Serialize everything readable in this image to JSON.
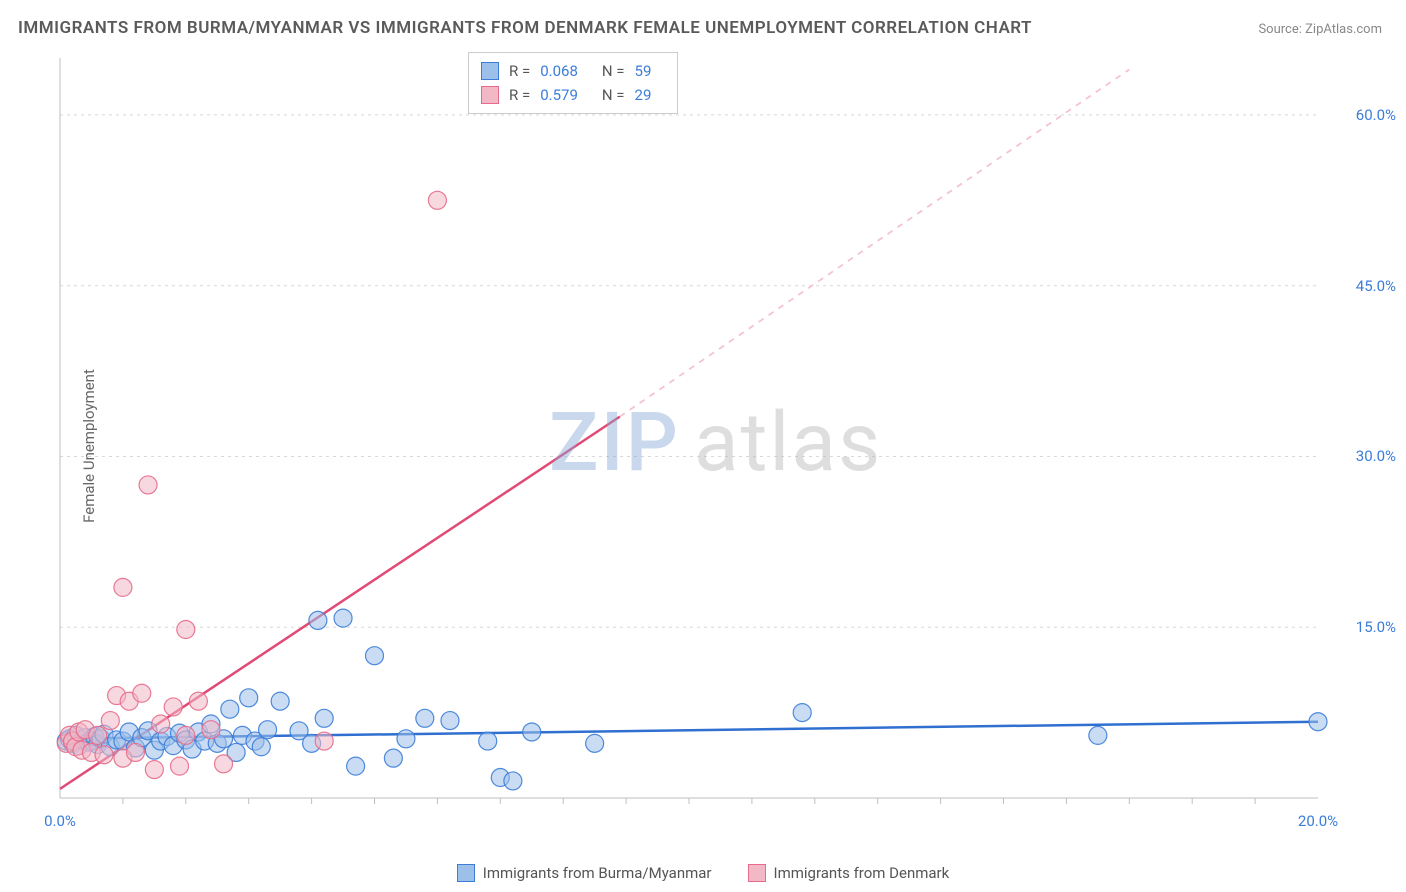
{
  "title": "IMMIGRANTS FROM BURMA/MYANMAR VS IMMIGRANTS FROM DENMARK FEMALE UNEMPLOYMENT CORRELATION CHART",
  "source_label": "Source:",
  "source_value": "ZipAtlas.com",
  "ylabel": "Female Unemployment",
  "watermark_a": "ZIP",
  "watermark_b": "atlas",
  "chart": {
    "type": "scatter",
    "plot_bg": "#ffffff",
    "grid_color": "#d8d8d8",
    "axis_color": "#bfbfbf",
    "tick_label_color": "#3b7dd8",
    "tick_fontsize": 15,
    "xlim": [
      0,
      20
    ],
    "ylim": [
      0,
      65
    ],
    "xticks": [
      0,
      20
    ],
    "xtick_labels": [
      "0.0%",
      "20.0%"
    ],
    "yticks": [
      15,
      30,
      45,
      60
    ],
    "ytick_labels": [
      "15.0%",
      "30.0%",
      "45.0%",
      "60.0%"
    ],
    "marker_radius": 9,
    "marker_opacity": 0.55,
    "marker_stroke_opacity": 0.9,
    "series": [
      {
        "name": "Immigrants from Burma/Myanmar",
        "fill": "#9cc0ea",
        "stroke": "#3b7dd8",
        "r_value": "0.068",
        "n_value": "59",
        "trend": {
          "x1": 0,
          "y1": 5.2,
          "x2": 20,
          "y2": 6.7,
          "color": "#2f6fd0",
          "width": 2.5,
          "dash": ""
        },
        "points": [
          [
            0.1,
            5.0
          ],
          [
            0.15,
            5.2
          ],
          [
            0.2,
            4.8
          ],
          [
            0.25,
            5.5
          ],
          [
            0.3,
            4.6
          ],
          [
            0.35,
            5.1
          ],
          [
            0.4,
            5.3
          ],
          [
            0.45,
            4.9
          ],
          [
            0.5,
            5.0
          ],
          [
            0.55,
            5.4
          ],
          [
            0.6,
            4.7
          ],
          [
            0.65,
            5.2
          ],
          [
            0.7,
            5.6
          ],
          [
            0.8,
            4.5
          ],
          [
            0.9,
            5.1
          ],
          [
            1.0,
            5.0
          ],
          [
            1.1,
            5.8
          ],
          [
            1.2,
            4.4
          ],
          [
            1.3,
            5.3
          ],
          [
            1.4,
            5.9
          ],
          [
            1.5,
            4.2
          ],
          [
            1.6,
            5.0
          ],
          [
            1.7,
            5.4
          ],
          [
            1.8,
            4.6
          ],
          [
            1.9,
            5.7
          ],
          [
            2.0,
            5.1
          ],
          [
            2.1,
            4.3
          ],
          [
            2.2,
            5.8
          ],
          [
            2.3,
            5.0
          ],
          [
            2.4,
            6.5
          ],
          [
            2.5,
            4.8
          ],
          [
            2.6,
            5.2
          ],
          [
            2.7,
            7.8
          ],
          [
            2.8,
            4.0
          ],
          [
            2.9,
            5.5
          ],
          [
            3.0,
            8.8
          ],
          [
            3.1,
            5.0
          ],
          [
            3.2,
            4.5
          ],
          [
            3.3,
            6.0
          ],
          [
            3.5,
            8.5
          ],
          [
            3.8,
            5.9
          ],
          [
            4.0,
            4.8
          ],
          [
            4.1,
            15.6
          ],
          [
            4.2,
            7.0
          ],
          [
            4.5,
            15.8
          ],
          [
            4.7,
            2.8
          ],
          [
            5.0,
            12.5
          ],
          [
            5.3,
            3.5
          ],
          [
            5.5,
            5.2
          ],
          [
            5.8,
            7.0
          ],
          [
            6.2,
            6.8
          ],
          [
            6.8,
            5.0
          ],
          [
            7.0,
            1.8
          ],
          [
            7.5,
            5.8
          ],
          [
            8.5,
            4.8
          ],
          [
            7.2,
            1.5
          ],
          [
            11.8,
            7.5
          ],
          [
            16.5,
            5.5
          ],
          [
            20.0,
            6.7
          ]
        ]
      },
      {
        "name": "Immigrants from Denmark",
        "fill": "#f2b8c6",
        "stroke": "#e76b8a",
        "r_value": "0.579",
        "n_value": "29",
        "trend_solid": {
          "x1": 0,
          "y1": 0.8,
          "x2": 8.9,
          "y2": 33.5,
          "color": "#e14a74",
          "width": 2.5
        },
        "trend_dash": {
          "x1": 8.9,
          "y1": 33.5,
          "x2": 17.0,
          "y2": 64,
          "color": "#f4c3d0",
          "width": 1.8,
          "dash": "6,6"
        },
        "points": [
          [
            0.1,
            4.8
          ],
          [
            0.15,
            5.5
          ],
          [
            0.2,
            5.0
          ],
          [
            0.25,
            4.5
          ],
          [
            0.3,
            5.8
          ],
          [
            0.35,
            4.2
          ],
          [
            0.4,
            6.0
          ],
          [
            0.5,
            4.0
          ],
          [
            0.6,
            5.5
          ],
          [
            0.7,
            3.8
          ],
          [
            0.8,
            6.8
          ],
          [
            0.9,
            9.0
          ],
          [
            1.0,
            3.5
          ],
          [
            1.1,
            8.5
          ],
          [
            1.2,
            4.0
          ],
          [
            1.3,
            9.2
          ],
          [
            1.5,
            2.5
          ],
          [
            1.6,
            6.5
          ],
          [
            1.8,
            8.0
          ],
          [
            1.9,
            2.8
          ],
          [
            2.0,
            5.5
          ],
          [
            2.2,
            8.5
          ],
          [
            2.4,
            6.0
          ],
          [
            2.6,
            3.0
          ],
          [
            1.0,
            18.5
          ],
          [
            1.4,
            27.5
          ],
          [
            2.0,
            14.8
          ],
          [
            4.2,
            5.0
          ],
          [
            6.0,
            52.5
          ]
        ]
      }
    ]
  },
  "bottom_legend": [
    {
      "label": "Immigrants from Burma/Myanmar",
      "fill": "#9cc0ea",
      "stroke": "#3b7dd8"
    },
    {
      "label": "Immigrants from Denmark",
      "fill": "#f2b8c6",
      "stroke": "#e76b8a"
    }
  ]
}
